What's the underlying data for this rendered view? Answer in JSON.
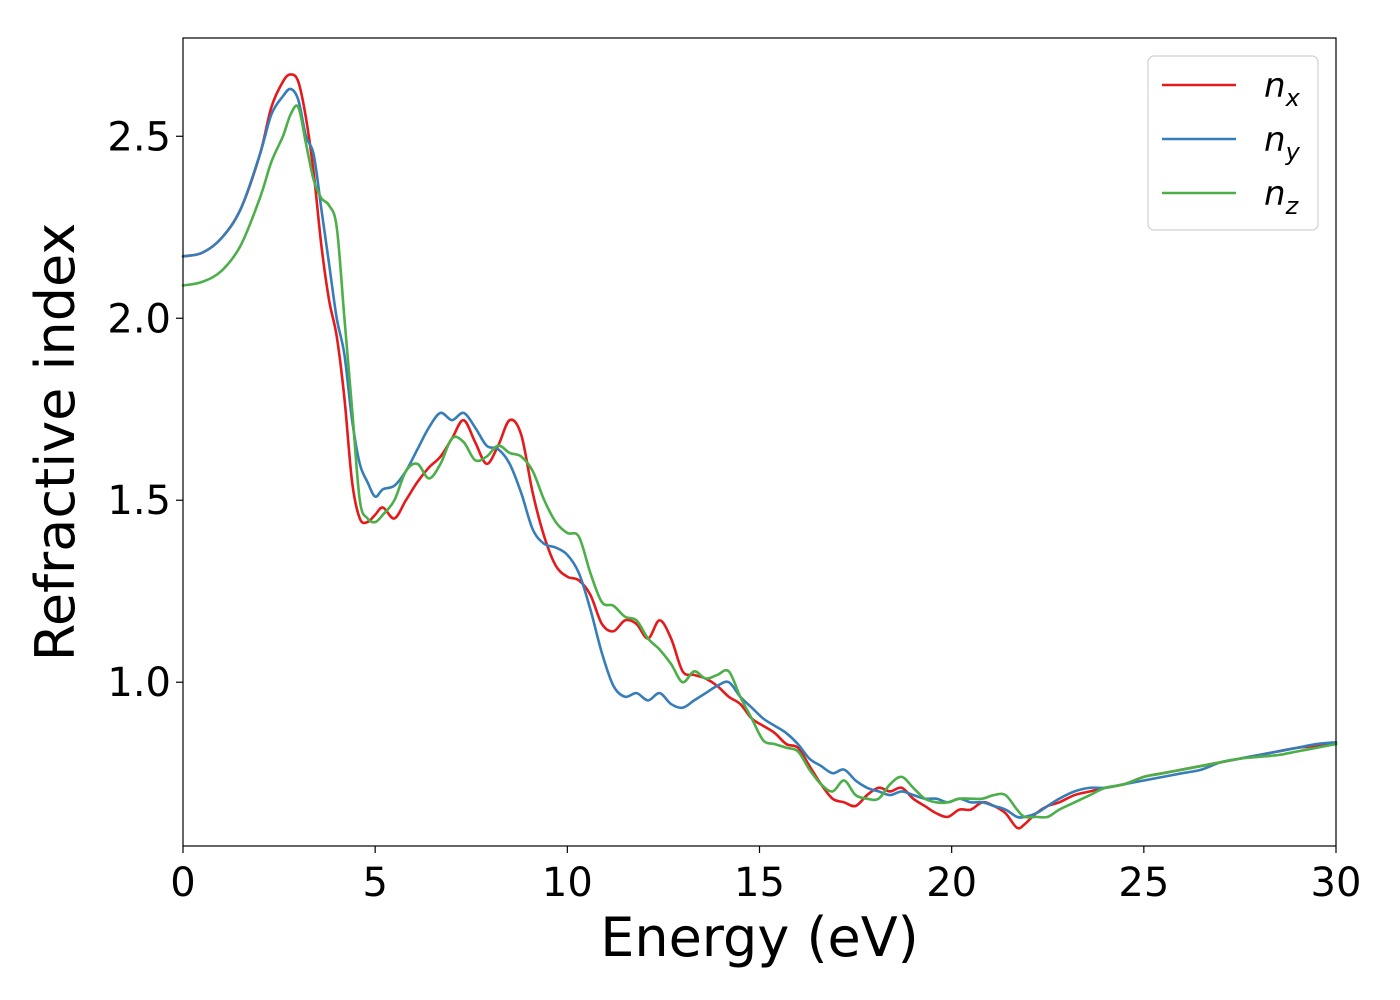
{
  "chart_data": {
    "type": "line",
    "xlabel": "Energy (eV)",
    "ylabel": "Refractive index",
    "xlim": [
      0,
      30
    ],
    "ylim": [
      0.55,
      2.77
    ],
    "xticks": [
      0,
      5,
      10,
      15,
      20,
      25,
      30
    ],
    "yticks": [
      1.0,
      1.5,
      2.0,
      2.5
    ],
    "xtick_labels": [
      "0",
      "5",
      "10",
      "15",
      "20",
      "25",
      "30"
    ],
    "ytick_labels": [
      "1.0",
      "1.5",
      "2.0",
      "2.5"
    ],
    "grid": false,
    "legend_position": "top-right",
    "series": [
      {
        "name": "n_x",
        "label_base": "n",
        "label_sub": "x",
        "color": "#e41a1c",
        "x": [
          0,
          0.5,
          1.0,
          1.5,
          2.0,
          2.3,
          2.6,
          2.8,
          3.0,
          3.2,
          3.4,
          3.6,
          3.8,
          4.0,
          4.2,
          4.4,
          4.6,
          4.8,
          5.0,
          5.2,
          5.5,
          5.8,
          6.1,
          6.4,
          6.7,
          7.0,
          7.3,
          7.6,
          7.9,
          8.2,
          8.5,
          8.8,
          9.1,
          9.4,
          9.7,
          10.0,
          10.3,
          10.6,
          10.9,
          11.2,
          11.5,
          11.8,
          12.1,
          12.4,
          12.7,
          13.0,
          13.3,
          13.6,
          13.9,
          14.2,
          14.5,
          14.8,
          15.1,
          15.4,
          15.7,
          16.0,
          16.3,
          16.6,
          16.9,
          17.2,
          17.5,
          17.8,
          18.1,
          18.4,
          18.7,
          19.0,
          19.3,
          19.6,
          19.9,
          20.2,
          20.5,
          20.8,
          21.1,
          21.4,
          21.7,
          21.9,
          22.2,
          22.5,
          22.8,
          23.2,
          23.6,
          24.0,
          24.5,
          25.0,
          25.5,
          26.0,
          26.5,
          27.0,
          27.5,
          28.0,
          28.5,
          29.0,
          29.5,
          30.0
        ],
        "y": [
          2.17,
          2.18,
          2.22,
          2.3,
          2.45,
          2.58,
          2.65,
          2.67,
          2.65,
          2.55,
          2.4,
          2.2,
          2.05,
          1.95,
          1.78,
          1.55,
          1.45,
          1.44,
          1.46,
          1.48,
          1.45,
          1.5,
          1.55,
          1.59,
          1.62,
          1.67,
          1.72,
          1.66,
          1.6,
          1.65,
          1.72,
          1.68,
          1.52,
          1.4,
          1.32,
          1.29,
          1.28,
          1.24,
          1.16,
          1.14,
          1.17,
          1.16,
          1.12,
          1.17,
          1.12,
          1.03,
          1.02,
          1.01,
          0.99,
          0.96,
          0.94,
          0.9,
          0.88,
          0.86,
          0.83,
          0.82,
          0.77,
          0.72,
          0.68,
          0.67,
          0.66,
          0.69,
          0.71,
          0.7,
          0.71,
          0.68,
          0.66,
          0.64,
          0.63,
          0.65,
          0.65,
          0.67,
          0.66,
          0.64,
          0.6,
          0.61,
          0.64,
          0.66,
          0.67,
          0.69,
          0.7,
          0.71,
          0.72,
          0.74,
          0.75,
          0.76,
          0.77,
          0.78,
          0.79,
          0.8,
          0.81,
          0.82,
          0.825,
          0.83
        ]
      },
      {
        "name": "n_y",
        "label_base": "n",
        "label_sub": "y",
        "color": "#377eb8",
        "x": [
          0,
          0.5,
          1.0,
          1.5,
          2.0,
          2.3,
          2.6,
          2.8,
          3.0,
          3.2,
          3.4,
          3.6,
          3.8,
          4.0,
          4.2,
          4.4,
          4.6,
          4.8,
          5.0,
          5.2,
          5.5,
          5.8,
          6.1,
          6.4,
          6.7,
          7.0,
          7.3,
          7.6,
          7.9,
          8.2,
          8.5,
          8.8,
          9.1,
          9.4,
          9.7,
          10.0,
          10.3,
          10.6,
          10.9,
          11.2,
          11.5,
          11.8,
          12.1,
          12.4,
          12.7,
          13.0,
          13.3,
          13.6,
          13.9,
          14.2,
          14.5,
          14.8,
          15.1,
          15.4,
          15.7,
          16.0,
          16.3,
          16.6,
          16.9,
          17.2,
          17.5,
          17.8,
          18.1,
          18.4,
          18.7,
          19.0,
          19.3,
          19.6,
          19.9,
          20.2,
          20.5,
          20.8,
          21.1,
          21.4,
          21.7,
          21.9,
          22.2,
          22.5,
          22.8,
          23.2,
          23.6,
          24.0,
          24.5,
          25.0,
          25.5,
          26.0,
          26.5,
          27.0,
          27.5,
          28.0,
          28.5,
          29.0,
          29.5,
          30.0
        ],
        "y": [
          2.17,
          2.18,
          2.22,
          2.3,
          2.45,
          2.56,
          2.61,
          2.63,
          2.6,
          2.5,
          2.45,
          2.3,
          2.15,
          2.0,
          1.9,
          1.72,
          1.6,
          1.55,
          1.51,
          1.53,
          1.54,
          1.58,
          1.64,
          1.7,
          1.74,
          1.72,
          1.74,
          1.7,
          1.65,
          1.64,
          1.6,
          1.52,
          1.42,
          1.38,
          1.37,
          1.35,
          1.3,
          1.2,
          1.08,
          0.99,
          0.96,
          0.97,
          0.95,
          0.97,
          0.94,
          0.93,
          0.95,
          0.97,
          0.99,
          1.0,
          0.96,
          0.93,
          0.9,
          0.88,
          0.86,
          0.83,
          0.79,
          0.77,
          0.75,
          0.76,
          0.73,
          0.71,
          0.7,
          0.69,
          0.7,
          0.69,
          0.68,
          0.68,
          0.67,
          0.68,
          0.67,
          0.67,
          0.66,
          0.65,
          0.63,
          0.63,
          0.64,
          0.66,
          0.68,
          0.7,
          0.71,
          0.71,
          0.72,
          0.73,
          0.74,
          0.75,
          0.76,
          0.78,
          0.79,
          0.8,
          0.81,
          0.82,
          0.83,
          0.835
        ]
      },
      {
        "name": "n_z",
        "label_base": "n",
        "label_sub": "z",
        "color": "#4daf4a",
        "x": [
          0,
          0.5,
          1.0,
          1.5,
          2.0,
          2.3,
          2.6,
          2.8,
          3.0,
          3.2,
          3.4,
          3.6,
          3.8,
          4.0,
          4.2,
          4.4,
          4.6,
          4.8,
          5.0,
          5.2,
          5.5,
          5.8,
          6.1,
          6.4,
          6.7,
          7.0,
          7.3,
          7.6,
          7.9,
          8.2,
          8.5,
          8.8,
          9.1,
          9.4,
          9.7,
          10.0,
          10.3,
          10.6,
          10.9,
          11.2,
          11.5,
          11.8,
          12.1,
          12.4,
          12.7,
          13.0,
          13.3,
          13.6,
          13.9,
          14.2,
          14.5,
          14.8,
          15.1,
          15.4,
          15.7,
          16.0,
          16.3,
          16.6,
          16.9,
          17.2,
          17.5,
          17.8,
          18.1,
          18.4,
          18.7,
          19.0,
          19.3,
          19.6,
          19.9,
          20.2,
          20.5,
          20.8,
          21.1,
          21.4,
          21.7,
          21.9,
          22.2,
          22.5,
          22.8,
          23.2,
          23.6,
          24.0,
          24.5,
          25.0,
          25.5,
          26.0,
          26.5,
          27.0,
          27.5,
          28.0,
          28.5,
          29.0,
          29.5,
          30.0
        ],
        "y": [
          2.09,
          2.1,
          2.13,
          2.2,
          2.33,
          2.43,
          2.5,
          2.56,
          2.58,
          2.48,
          2.38,
          2.33,
          2.31,
          2.25,
          2.0,
          1.75,
          1.5,
          1.45,
          1.44,
          1.46,
          1.5,
          1.58,
          1.6,
          1.56,
          1.6,
          1.67,
          1.66,
          1.61,
          1.62,
          1.65,
          1.63,
          1.62,
          1.58,
          1.5,
          1.44,
          1.41,
          1.4,
          1.3,
          1.22,
          1.21,
          1.18,
          1.17,
          1.12,
          1.09,
          1.05,
          1.0,
          1.03,
          1.01,
          1.02,
          1.03,
          0.96,
          0.9,
          0.84,
          0.83,
          0.82,
          0.81,
          0.76,
          0.72,
          0.7,
          0.73,
          0.69,
          0.68,
          0.68,
          0.72,
          0.74,
          0.71,
          0.68,
          0.67,
          0.67,
          0.68,
          0.68,
          0.68,
          0.69,
          0.69,
          0.65,
          0.63,
          0.63,
          0.63,
          0.65,
          0.67,
          0.69,
          0.71,
          0.72,
          0.74,
          0.75,
          0.76,
          0.77,
          0.78,
          0.79,
          0.795,
          0.8,
          0.81,
          0.82,
          0.83
        ]
      }
    ]
  }
}
